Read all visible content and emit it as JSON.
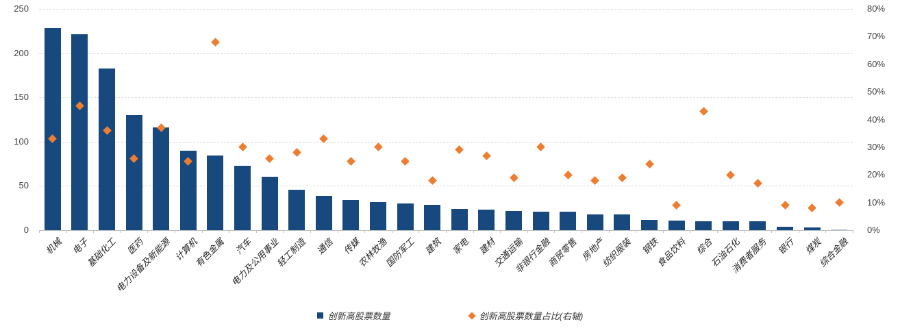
{
  "colors": {
    "bar": "#17497E",
    "marker": "#ED7D31",
    "last_bar": "#9FB9D3",
    "grid": "#d9d9d9",
    "axis_line": "#bfbfbf",
    "axis_text": "#404040"
  },
  "chart_data": {
    "type": "bar",
    "title": "",
    "categories": [
      "机械",
      "电子",
      "基础化工",
      "医药",
      "电力设备及新能源",
      "计算机",
      "有色金属",
      "汽车",
      "电力及公用事业",
      "轻工制造",
      "通信",
      "传媒",
      "农林牧渔",
      "国防军工",
      "建筑",
      "家电",
      "建材",
      "交通运输",
      "非银行金融",
      "商贸零售",
      "房地产",
      "纺织服装",
      "钢铁",
      "食品饮料",
      "综合",
      "石油石化",
      "消费者服务",
      "银行",
      "煤炭",
      "综合金融"
    ],
    "series": [
      {
        "name": "创新高股票数量",
        "type": "bar",
        "axis": "left",
        "color": "#17497E",
        "values": [
          228,
          221,
          183,
          130,
          116,
          90,
          84,
          73,
          60,
          46,
          39,
          34,
          32,
          30,
          29,
          24,
          23,
          22,
          21,
          21,
          18,
          18,
          12,
          11,
          10,
          10,
          10,
          4,
          3,
          1
        ]
      },
      {
        "name": "创新高股票数量占比(右轴)",
        "type": "scatter",
        "marker": "diamond",
        "axis": "right",
        "color": "#ED7D31",
        "values_pct": [
          33,
          45,
          36,
          26,
          37,
          25,
          68,
          30,
          26,
          28,
          33,
          25,
          30,
          25,
          18,
          29,
          27,
          19,
          30,
          20,
          18,
          19,
          24,
          9,
          43,
          20,
          17,
          9,
          8,
          10
        ]
      }
    ],
    "left_axis": {
      "min": 0,
      "max": 250,
      "tick_labels": [
        "0",
        "50",
        "100",
        "150",
        "200",
        "250"
      ]
    },
    "right_axis": {
      "min_pct": 0,
      "max_pct": 80,
      "tick_labels": [
        "0%",
        "10%",
        "20%",
        "30%",
        "40%",
        "50%",
        "60%",
        "70%",
        "80%"
      ]
    },
    "grid": "horizontal-dashed-every-50",
    "legend_position": "bottom",
    "bar_color_overrides": {
      "综合金融": "#9FB9D3"
    }
  }
}
